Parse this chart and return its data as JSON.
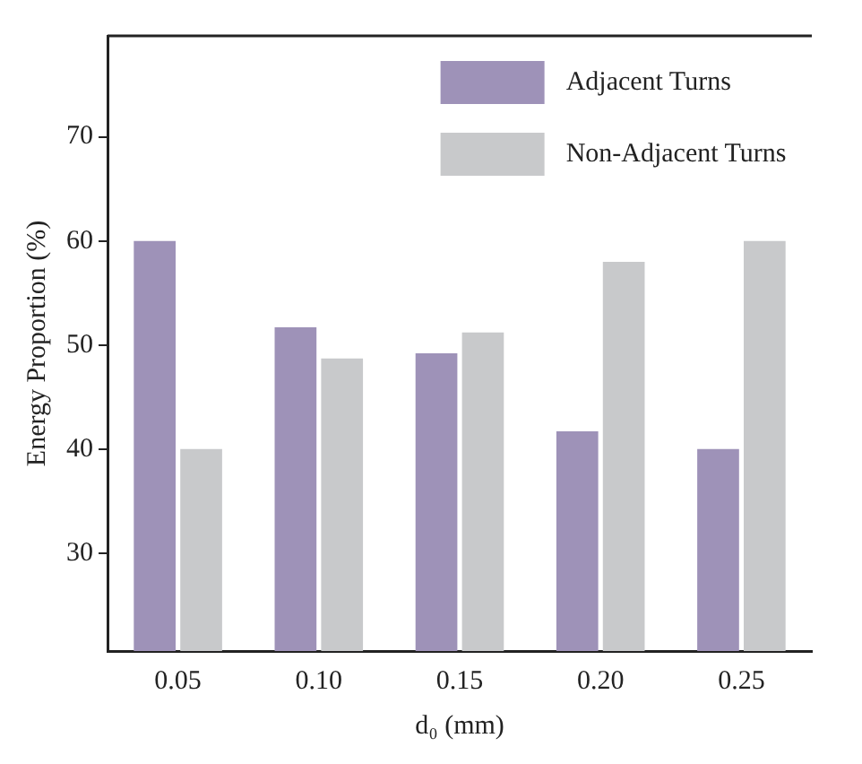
{
  "chart_data": {
    "type": "bar",
    "xlabel": "d₀ (mm)",
    "ylabel": "Energy Proportion (%)",
    "categories": [
      "0.05",
      "0.10",
      "0.15",
      "0.20",
      "0.25"
    ],
    "series": [
      {
        "name": "Adjacent Turns",
        "color": "#9e92b8",
        "values": [
          60,
          51.7,
          49.2,
          41.7,
          40
        ]
      },
      {
        "name": "Non-Adjacent Turns",
        "color": "#c8c9cb",
        "values": [
          40,
          48.7,
          51.2,
          58,
          60
        ]
      }
    ],
    "ylim": [
      20.6,
      79.7
    ],
    "yticks": [
      30,
      40,
      50,
      60,
      70
    ],
    "grid": false,
    "legend": "top right"
  }
}
